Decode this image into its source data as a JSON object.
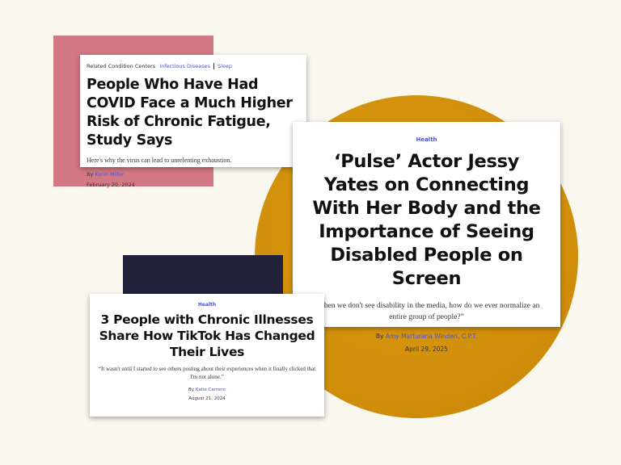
{
  "colors": {
    "background": "#f9f7ee",
    "pink_block": "#d27884",
    "gold_circle": "#d4930e",
    "navy_block": "#22213b",
    "link": "#4a55d6"
  },
  "card1": {
    "related_label": "Related Condition Centers",
    "related_links": [
      "Infectious Diseases",
      "Sleep"
    ],
    "title": "People Who Have Had COVID Face a Much Higher Risk of Chronic Fatigue, Study Says",
    "dek": "Here's why the virus can lead to unrelenting exhaustion.",
    "by": "By",
    "author": "Korin Miller",
    "date": "February 20, 2024"
  },
  "card2": {
    "tag": "Health",
    "title": "‘Pulse’ Actor Jessy Yates on Connecting With Her Body and the Importance of Seeing Disabled People on Screen",
    "dek": "“When we don't see disability in the media, how do we ever normalize an entire group of people?”",
    "by": "By",
    "author": "Amy Marturana Winderl, C.P.T.",
    "date": "April 29, 2025"
  },
  "card3": {
    "tag": "Health",
    "title": "3 People with Chronic Illnesses Share How TikTok Has Changed Their Lives",
    "dek": "“It wasn't until I started to see others posting about their experiences when it finally clicked that I'm not alone.”",
    "by": "By",
    "author": "Katie Camero",
    "date": "August 21, 2024"
  }
}
